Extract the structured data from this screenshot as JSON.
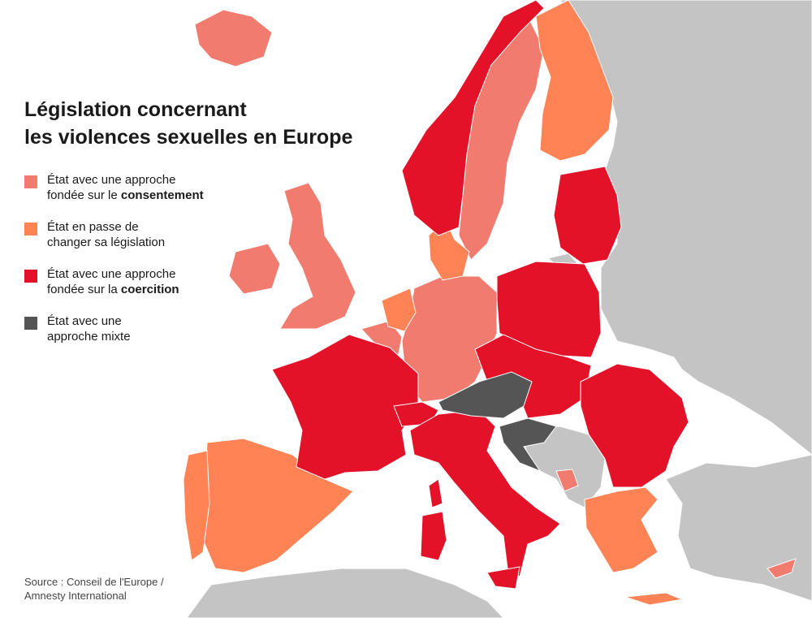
{
  "title": {
    "line1": "Législation concernant",
    "line2": "les violences sexuelles en Europe"
  },
  "legend": [
    {
      "pre": "État avec une approche",
      "line2_pre": "fondée sur le ",
      "bold": "consentement",
      "color": "#f07b6e"
    },
    {
      "pre": "État en passe de",
      "line2_pre": "changer sa législation",
      "bold": "",
      "color": "#ff8354"
    },
    {
      "pre": "État avec une approche",
      "line2_pre": "fondée sur la ",
      "bold": "coercition",
      "color": "#e31229"
    },
    {
      "pre": "État avec une",
      "line2_pre": "approche mixte",
      "bold": "",
      "color": "#555555"
    }
  ],
  "source": {
    "line1": "Source : Conseil de l'Europe /",
    "line2": "Amnesty International"
  },
  "colors": {
    "consent": "#f07b6e",
    "changing": "#ff8354",
    "coercion": "#e31229",
    "mixed": "#555555",
    "other_land": "#c4c4c4",
    "sea": "#ffffff"
  },
  "countries": {
    "consent": [
      "Iceland",
      "Ireland",
      "United Kingdom",
      "Sweden",
      "Germany",
      "Belgium",
      "Luxembourg",
      "Cyprus",
      "Montenegro"
    ],
    "changing": [
      "Finland",
      "Denmark",
      "Netherlands",
      "Spain",
      "Portugal",
      "Greece"
    ],
    "coercion": [
      "Norway",
      "Estonia",
      "Latvia",
      "Lithuania",
      "Poland",
      "Czechia",
      "Slovakia",
      "Hungary",
      "Romania",
      "Bulgaria",
      "France",
      "Switzerland",
      "Italy",
      "Slovenia",
      "Malta"
    ],
    "mixed": [
      "Austria",
      "Croatia"
    ]
  }
}
